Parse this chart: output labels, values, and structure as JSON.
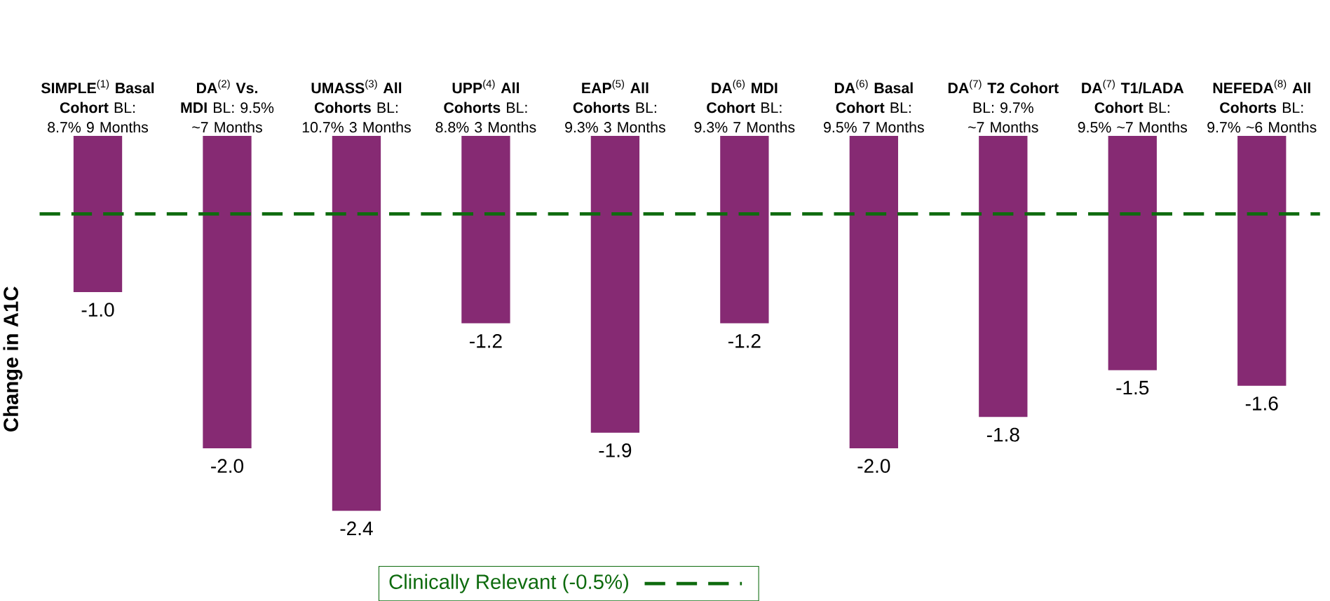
{
  "chart_data": {
    "type": "bar",
    "ylabel": "Change in A1C",
    "categories": [
      "**SIMPLE**$^{(1)}$ **Basal Cohort** BL:  8.7% 9 Months",
      "**DA**$^{(2)}$ **Vs. MDI** BL:  9.5% ~7 Months",
      "**UMASS**$^{(3)}$ **All Cohorts** BL: 10.7% 3 Months",
      "**UPP**$^{(4)}$ **All Cohorts** BL: 8.8% 3 Months",
      "**EAP**$^{(5)}$ **All Cohorts** BL: 9.3% 3 Months",
      "**DA**$^{(6)}$ **MDI Cohort** BL: 9.3% 7 Months",
      "**DA**$^{(6)}$ **Basal Cohort** BL: 9.5% 7 Months",
      "**DA**$^{(7)}$ **T2 Cohort** BL: 9.7% ~7 Months",
      "**DA**$^{(7)}$ **T1/LADA Cohort** BL: 9.5% ~7 Months",
      "**NEFEDA**$^{(8)}$ **All Cohorts** BL: 9.7% ~6 Months"
    ],
    "values": [
      -1.0,
      -2.0,
      -2.4,
      -1.2,
      -1.9,
      -1.2,
      -2.0,
      -1.8,
      -1.5,
      -1.6
    ],
    "value_labels": [
      "-1.0",
      "-2.0",
      "-2.4",
      "-1.2",
      "-1.9",
      "-1.2",
      "-2.0",
      "-1.8",
      "-1.5",
      "-1.6"
    ],
    "color": "#862a73",
    "ref_lines": [
      {
        "axis": "y",
        "value": -0.5,
        "label": "Clinically Relevant (-0.5%)",
        "color": "#0e6b0e",
        "line_style": "dashed"
      }
    ]
  }
}
